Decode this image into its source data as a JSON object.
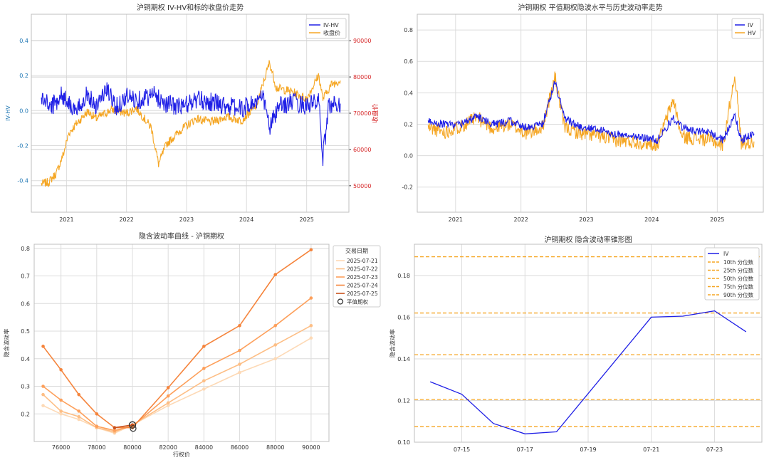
{
  "colors": {
    "iv_blue": "#1f1fe6",
    "orange": "#f5a623",
    "red_axis": "#d62728",
    "blue_axis": "#1f77b4",
    "grid": "#d9d9d9"
  },
  "chart_data": [
    {
      "id": "c1",
      "type": "line",
      "title": "沪铜期权 IV-HV和标的收盘价走势",
      "ylabel": "IV-HV",
      "y2label": "收盘价",
      "xlim": [
        "2020-06-01",
        "2025-09-15"
      ],
      "ylim": [
        -0.58,
        0.55
      ],
      "y2lim": [
        42700,
        97300
      ],
      "x_ticks": [
        [
          "2021-01-01",
          "2021"
        ],
        [
          "2022-01-01",
          "2022"
        ],
        [
          "2023-01-01",
          "2023"
        ],
        [
          "2024-01-01",
          "2024"
        ],
        [
          "2025-01-01",
          "2025"
        ]
      ],
      "y_ticks": [
        -0.4,
        -0.2,
        0.0,
        0.2,
        0.4
      ],
      "y2_ticks": [
        50000,
        60000,
        70000,
        80000,
        90000
      ],
      "legend_position": "top-right",
      "series": [
        {
          "name": "IV-HV",
          "color": "#1f1fe6",
          "axis": "left",
          "points": [
            [
              "2020-08-01",
              0.07
            ],
            [
              "2020-10-01",
              0.02
            ],
            [
              "2020-12-01",
              0.09
            ],
            [
              "2021-01-15",
              0.05
            ],
            [
              "2021-03-01",
              -0.02
            ],
            [
              "2021-05-01",
              0.1
            ],
            [
              "2021-07-01",
              0.03
            ],
            [
              "2021-09-01",
              0.12
            ],
            [
              "2021-11-01",
              0.02
            ],
            [
              "2022-01-01",
              0.08
            ],
            [
              "2022-03-08",
              0.06
            ],
            [
              "2022-06-15",
              0.09
            ],
            [
              "2022-09-01",
              0.04
            ],
            [
              "2022-12-01",
              0.02
            ],
            [
              "2023-03-01",
              0.06
            ],
            [
              "2023-06-01",
              0.05
            ],
            [
              "2023-09-01",
              0.03
            ],
            [
              "2023-12-01",
              0.01
            ],
            [
              "2024-02-01",
              0.04
            ],
            [
              "2024-04-15",
              0.07
            ],
            [
              "2024-05-20",
              -0.1
            ],
            [
              "2024-07-15",
              0.02
            ],
            [
              "2024-10-01",
              0.05
            ],
            [
              "2025-01-01",
              0.03
            ],
            [
              "2025-03-15",
              0.05
            ],
            [
              "2025-04-10",
              -0.27
            ],
            [
              "2025-05-15",
              0.03
            ],
            [
              "2025-07-25",
              0.04
            ]
          ]
        },
        {
          "name": "收盘价",
          "color": "#f5a623",
          "axis": "right",
          "points": [
            [
              "2020-08-01",
              50500
            ],
            [
              "2020-09-15",
              51000
            ],
            [
              "2020-11-01",
              53500
            ],
            [
              "2020-12-15",
              59000
            ],
            [
              "2021-01-15",
              64500
            ],
            [
              "2021-03-01",
              67000
            ],
            [
              "2021-05-10",
              70500
            ],
            [
              "2021-07-01",
              68500
            ],
            [
              "2021-10-01",
              71000
            ],
            [
              "2022-01-01",
              70000
            ],
            [
              "2022-03-01",
              71500
            ],
            [
              "2022-06-01",
              66000
            ],
            [
              "2022-07-15",
              56000
            ],
            [
              "2022-09-01",
              61500
            ],
            [
              "2022-12-01",
              65500
            ],
            [
              "2023-03-01",
              68500
            ],
            [
              "2023-06-01",
              67500
            ],
            [
              "2023-09-01",
              69000
            ],
            [
              "2023-12-01",
              68000
            ],
            [
              "2024-03-01",
              72000
            ],
            [
              "2024-05-20",
              84000
            ],
            [
              "2024-07-01",
              77000
            ],
            [
              "2024-10-01",
              76000
            ],
            [
              "2025-01-01",
              74000
            ],
            [
              "2025-03-15",
              80500
            ],
            [
              "2025-04-10",
              74000
            ],
            [
              "2025-06-01",
              78000
            ],
            [
              "2025-07-25",
              79000
            ]
          ]
        }
      ]
    },
    {
      "id": "c2",
      "type": "line",
      "title": "沪铜期权 平值期权隐波水平与历史波动率走势",
      "xlim": [
        "2020-06-01",
        "2025-09-15"
      ],
      "ylim": [
        -0.36,
        0.9
      ],
      "x_ticks": [
        [
          "2021-01-01",
          "2021"
        ],
        [
          "2022-01-01",
          "2022"
        ],
        [
          "2023-01-01",
          "2023"
        ],
        [
          "2024-01-01",
          "2024"
        ],
        [
          "2025-01-01",
          "2025"
        ]
      ],
      "y_ticks": [
        -0.2,
        0.0,
        0.2,
        0.4,
        0.6,
        0.8
      ],
      "legend_position": "top-right",
      "series": [
        {
          "name": "IV",
          "color": "#1f1fe6",
          "points": [
            [
              "2020-08-01",
              0.22
            ],
            [
              "2020-11-01",
              0.2
            ],
            [
              "2021-02-01",
              0.2
            ],
            [
              "2021-05-01",
              0.25
            ],
            [
              "2021-08-01",
              0.2
            ],
            [
              "2021-11-01",
              0.22
            ],
            [
              "2022-02-01",
              0.18
            ],
            [
              "2022-05-01",
              0.2
            ],
            [
              "2022-07-10",
              0.47
            ],
            [
              "2022-09-01",
              0.24
            ],
            [
              "2022-12-01",
              0.18
            ],
            [
              "2023-03-01",
              0.17
            ],
            [
              "2023-06-01",
              0.14
            ],
            [
              "2023-09-01",
              0.13
            ],
            [
              "2023-12-01",
              0.11
            ],
            [
              "2024-02-01",
              0.1
            ],
            [
              "2024-05-01",
              0.24
            ],
            [
              "2024-06-15",
              0.18
            ],
            [
              "2024-09-01",
              0.16
            ],
            [
              "2024-12-01",
              0.14
            ],
            [
              "2025-02-01",
              0.1
            ],
            [
              "2025-04-10",
              0.25
            ],
            [
              "2025-05-15",
              0.1
            ],
            [
              "2025-07-25",
              0.14
            ]
          ]
        },
        {
          "name": "HV",
          "color": "#f5a623",
          "points": [
            [
              "2020-08-01",
              0.18
            ],
            [
              "2020-11-01",
              0.15
            ],
            [
              "2021-02-01",
              0.19
            ],
            [
              "2021-05-01",
              0.24
            ],
            [
              "2021-08-01",
              0.17
            ],
            [
              "2021-11-01",
              0.2
            ],
            [
              "2022-02-01",
              0.14
            ],
            [
              "2022-05-01",
              0.18
            ],
            [
              "2022-07-10",
              0.5
            ],
            [
              "2022-09-01",
              0.18
            ],
            [
              "2022-12-01",
              0.14
            ],
            [
              "2023-03-01",
              0.13
            ],
            [
              "2023-06-01",
              0.1
            ],
            [
              "2023-09-01",
              0.09
            ],
            [
              "2023-12-01",
              0.08
            ],
            [
              "2024-02-01",
              0.07
            ],
            [
              "2024-05-01",
              0.36
            ],
            [
              "2024-06-15",
              0.12
            ],
            [
              "2024-09-01",
              0.11
            ],
            [
              "2024-12-01",
              0.1
            ],
            [
              "2025-02-01",
              0.06
            ],
            [
              "2025-04-10",
              0.52
            ],
            [
              "2025-05-15",
              0.08
            ],
            [
              "2025-07-25",
              0.09
            ]
          ]
        }
      ]
    },
    {
      "id": "c3",
      "type": "line",
      "title": "隐含波动率曲线 - 沪铜期权",
      "xlabel": "行权价",
      "ylabel": "隐含波动率",
      "xlim": [
        74500,
        91000
      ],
      "ylim": [
        0.1,
        0.815
      ],
      "x_ticks": [
        76000,
        78000,
        80000,
        82000,
        84000,
        86000,
        88000,
        90000
      ],
      "y_ticks": [
        0.2,
        0.3,
        0.4,
        0.5,
        0.6,
        0.7,
        0.8
      ],
      "legend_title": "交易日期",
      "legend_position": "top-right",
      "atm_label": "平值期权",
      "strikes": [
        75000,
        76000,
        77000,
        78000,
        79000,
        80000,
        82000,
        84000,
        86000,
        88000,
        90000
      ],
      "series": [
        {
          "name": "2025-07-21",
          "color": "#fdd9b5",
          "values": [
            0.23,
            0.2,
            0.18,
            0.15,
            0.13,
            0.16,
            0.23,
            0.29,
            0.35,
            0.4,
            0.475
          ]
        },
        {
          "name": "2025-07-22",
          "color": "#fdbe85",
          "values": [
            0.27,
            0.21,
            0.19,
            0.15,
            0.135,
            0.16,
            0.24,
            0.32,
            0.38,
            0.45,
            0.52
          ]
        },
        {
          "name": "2025-07-23",
          "color": "#fd9f5a",
          "values": [
            0.3,
            0.25,
            0.21,
            0.155,
            0.14,
            0.155,
            0.265,
            0.365,
            0.43,
            0.52,
            0.62
          ]
        },
        {
          "name": "2025-07-24",
          "color": "#f5843c",
          "values": [
            0.445,
            0.36,
            0.27,
            0.2,
            0.15,
            0.15,
            0.295,
            0.445,
            0.52,
            0.705,
            0.795
          ]
        },
        {
          "name": "2025-07-25",
          "color": "#c9511c",
          "values": [
            null,
            null,
            null,
            null,
            0.15,
            0.16,
            null,
            null,
            null,
            null,
            null
          ]
        }
      ]
    },
    {
      "id": "c4",
      "type": "line",
      "title": "沪铜期权 隐含波动率锥形图",
      "ylabel": "隐含波动率",
      "xlim": [
        "2025-07-13T12:00",
        "2025-07-24T12:00"
      ],
      "ylim": [
        0.1,
        0.195
      ],
      "x_ticks": [
        [
          "2025-07-15",
          "07-15"
        ],
        [
          "2025-07-17",
          "07-17"
        ],
        [
          "2025-07-19",
          "07-19"
        ],
        [
          "2025-07-21",
          "07-21"
        ],
        [
          "2025-07-23",
          "07-23"
        ]
      ],
      "y_ticks": [
        0.1,
        0.12,
        0.14,
        0.16,
        0.18
      ],
      "legend_position": "top-right",
      "series": [
        {
          "name": "IV",
          "color": "#1f1fe6",
          "points": [
            [
              "2025-07-14",
              0.129
            ],
            [
              "2025-07-15",
              0.123
            ],
            [
              "2025-07-16",
              0.109
            ],
            [
              "2025-07-17",
              0.104
            ],
            [
              "2025-07-18",
              0.105
            ],
            [
              "2025-07-21",
              0.16
            ],
            [
              "2025-07-22",
              0.1605
            ],
            [
              "2025-07-23",
              0.163
            ],
            [
              "2025-07-24",
              0.153
            ]
          ]
        }
      ],
      "percentiles": [
        {
          "name": "10th 分位数",
          "value": 0.1075
        },
        {
          "name": "25th 分位数",
          "value": 0.1205
        },
        {
          "name": "50th 分位数",
          "value": 0.142
        },
        {
          "name": "75th 分位数",
          "value": 0.162
        },
        {
          "name": "90th 分位数",
          "value": 0.189
        }
      ]
    }
  ]
}
